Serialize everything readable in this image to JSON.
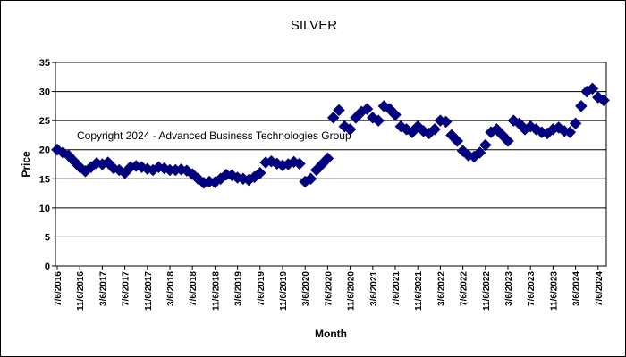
{
  "chart_data": {
    "type": "scatter",
    "title": "SILVER",
    "xlabel": "Month",
    "ylabel": "Price",
    "ylim": [
      0,
      35
    ],
    "yticks": [
      0,
      5,
      10,
      15,
      20,
      25,
      30,
      35
    ],
    "xtick_labels": [
      "7/6/2016",
      "11/6/2016",
      "3/6/2017",
      "7/6/2017",
      "11/6/2017",
      "3/6/2018",
      "7/6/2018",
      "11/6/2018",
      "3/6/2019",
      "7/6/2019",
      "11/6/2019",
      "3/6/2020",
      "7/6/2020",
      "11/6/2020",
      "3/6/2021",
      "7/6/2021",
      "11/6/2021",
      "3/6/2022",
      "7/6/2022",
      "11/6/2022",
      "3/6/2023",
      "7/6/2023",
      "11/6/2023",
      "3/6/2024",
      "7/6/2024"
    ],
    "grid": true,
    "legend": "none",
    "marker": "diamond",
    "series_color": "#000080",
    "annotation": "Copyright 2024 - Advanced Business Technologies Group",
    "series": [
      {
        "x": [
          "2016-07",
          "2016-08",
          "2016-09",
          "2016-10",
          "2016-11",
          "2016-12",
          "2017-01",
          "2017-02",
          "2017-03",
          "2017-04",
          "2017-05",
          "2017-06",
          "2017-07",
          "2017-08",
          "2017-09",
          "2017-10",
          "2017-11",
          "2017-12",
          "2018-01",
          "2018-02",
          "2018-03",
          "2018-04",
          "2018-05",
          "2018-06",
          "2018-07",
          "2018-08",
          "2018-09",
          "2018-10",
          "2018-11",
          "2018-12",
          "2019-01",
          "2019-02",
          "2019-03",
          "2019-04",
          "2019-05",
          "2019-06",
          "2019-07",
          "2019-08",
          "2019-09",
          "2019-10",
          "2019-11",
          "2019-12",
          "2020-01",
          "2020-02",
          "2020-03",
          "2020-04",
          "2020-05",
          "2020-06",
          "2020-07",
          "2020-08",
          "2020-09",
          "2020-10",
          "2020-11",
          "2020-12",
          "2021-01",
          "2021-02",
          "2021-03",
          "2021-04",
          "2021-05",
          "2021-06",
          "2021-07",
          "2021-08",
          "2021-09",
          "2021-10",
          "2021-11",
          "2021-12",
          "2022-01",
          "2022-02",
          "2022-03",
          "2022-04",
          "2022-05",
          "2022-06",
          "2022-07",
          "2022-08",
          "2022-09",
          "2022-10",
          "2022-11",
          "2022-12",
          "2023-01",
          "2023-02",
          "2023-03",
          "2023-04",
          "2023-05",
          "2023-06",
          "2023-07",
          "2023-08",
          "2023-09",
          "2023-10",
          "2023-11",
          "2023-12",
          "2024-01",
          "2024-02",
          "2024-03",
          "2024-04",
          "2024-05",
          "2024-06",
          "2024-07",
          "2024-08"
        ],
        "y": [
          20.0,
          19.5,
          19.0,
          18.0,
          17.0,
          16.3,
          17.0,
          17.7,
          17.5,
          17.8,
          16.8,
          16.5,
          16.0,
          17.0,
          17.2,
          17.0,
          16.7,
          16.5,
          17.0,
          16.8,
          16.5,
          16.5,
          16.6,
          16.4,
          15.8,
          15.0,
          14.3,
          14.5,
          14.4,
          15.0,
          15.7,
          15.6,
          15.2,
          15.0,
          14.8,
          15.3,
          16.0,
          17.8,
          18.0,
          17.6,
          17.3,
          17.5,
          17.9,
          17.6,
          14.5,
          15.0,
          16.5,
          17.5,
          18.5,
          25.5,
          26.8,
          24.0,
          23.5,
          25.5,
          26.5,
          27.0,
          25.5,
          25.0,
          27.5,
          27.0,
          26.0,
          24.0,
          23.5,
          23.0,
          24.0,
          23.2,
          22.8,
          23.5,
          25.0,
          24.8,
          22.5,
          21.5,
          19.8,
          19.0,
          18.8,
          19.5,
          20.8,
          23.0,
          23.5,
          22.5,
          21.5,
          25.0,
          24.5,
          23.5,
          24.0,
          23.5,
          23.0,
          22.8,
          23.5,
          23.8,
          23.2,
          23.0,
          24.5,
          27.5,
          30.0,
          30.5,
          29.0,
          28.5
        ]
      }
    ]
  }
}
